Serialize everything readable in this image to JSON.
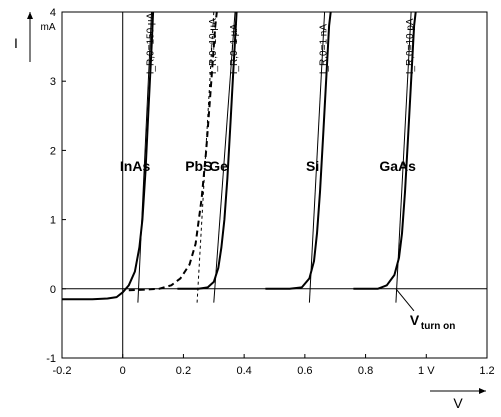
{
  "chart_data": {
    "type": "line",
    "title": "",
    "xlabel": "V",
    "ylabel": "I",
    "y_unit": "mA",
    "x_unit": "V",
    "xlim": [
      -0.2,
      1.2
    ],
    "ylim": [
      -1,
      4
    ],
    "x_ticks": [
      {
        "value": -0.2,
        "label": "-0.2"
      },
      {
        "value": 0,
        "label": "0"
      },
      {
        "value": 0.2,
        "label": "0.2"
      },
      {
        "value": 0.4,
        "label": "0.4"
      },
      {
        "value": 0.6,
        "label": "0.6"
      },
      {
        "value": 0.8,
        "label": "0.8"
      },
      {
        "value": 1.0,
        "label": "1 V"
      },
      {
        "value": 1.2,
        "label": "1.2"
      }
    ],
    "y_ticks": [
      {
        "value": -1,
        "label": "-1"
      },
      {
        "value": 0,
        "label": "0"
      },
      {
        "value": 1,
        "label": "1"
      },
      {
        "value": 2,
        "label": "2"
      },
      {
        "value": 3,
        "label": "3"
      },
      {
        "value": 4,
        "label": "4"
      }
    ],
    "grid": false,
    "series": [
      {
        "name": "InAs",
        "annotation": "I_R,0=150 µA",
        "style": "solid",
        "points": [
          [
            -0.2,
            -0.15
          ],
          [
            -0.1,
            -0.15
          ],
          [
            -0.05,
            -0.14
          ],
          [
            -0.02,
            -0.12
          ],
          [
            0,
            -0.05
          ],
          [
            0.02,
            0.05
          ],
          [
            0.04,
            0.25
          ],
          [
            0.055,
            0.6
          ],
          [
            0.065,
            1.0
          ],
          [
            0.075,
            1.7
          ],
          [
            0.085,
            2.6
          ],
          [
            0.095,
            3.5
          ],
          [
            0.1,
            4.0
          ]
        ],
        "tangent": [
          [
            0.05,
            -0.2
          ],
          [
            0.095,
            4.0
          ]
        ]
      },
      {
        "name": "PbS",
        "annotation": "I_R,0=10 µA",
        "style": "dashed",
        "points": [
          [
            0.02,
            -0.02
          ],
          [
            0.08,
            -0.01
          ],
          [
            0.12,
            0.0
          ],
          [
            0.16,
            0.05
          ],
          [
            0.19,
            0.15
          ],
          [
            0.22,
            0.35
          ],
          [
            0.24,
            0.65
          ],
          [
            0.26,
            1.3
          ],
          [
            0.275,
            2.0
          ],
          [
            0.29,
            2.9
          ],
          [
            0.305,
            3.8
          ],
          [
            0.31,
            4.0
          ]
        ],
        "tangent": [
          [
            0.245,
            -0.2
          ],
          [
            0.3,
            4.0
          ]
        ]
      },
      {
        "name": "Ge",
        "annotation": "I_R,0=1 µA",
        "style": "solid",
        "points": [
          [
            0.18,
            0.0
          ],
          [
            0.25,
            0.0
          ],
          [
            0.28,
            0.02
          ],
          [
            0.3,
            0.1
          ],
          [
            0.315,
            0.3
          ],
          [
            0.325,
            0.6
          ],
          [
            0.335,
            1.0
          ],
          [
            0.345,
            1.6
          ],
          [
            0.355,
            2.4
          ],
          [
            0.365,
            3.2
          ],
          [
            0.375,
            4.0
          ]
        ],
        "tangent": [
          [
            0.3,
            -0.2
          ],
          [
            0.37,
            4.0
          ]
        ]
      },
      {
        "name": "Si",
        "annotation": "I_R,0=1 nA",
        "style": "solid",
        "points": [
          [
            0.47,
            0.0
          ],
          [
            0.55,
            0.0
          ],
          [
            0.59,
            0.02
          ],
          [
            0.615,
            0.15
          ],
          [
            0.63,
            0.4
          ],
          [
            0.64,
            0.8
          ],
          [
            0.65,
            1.4
          ],
          [
            0.66,
            2.2
          ],
          [
            0.67,
            3.0
          ],
          [
            0.68,
            3.8
          ],
          [
            0.685,
            4.0
          ]
        ],
        "tangent": [
          [
            0.615,
            -0.2
          ],
          [
            0.665,
            4.0
          ]
        ]
      },
      {
        "name": "GaAs",
        "annotation": "I_R,0=10 pA",
        "style": "solid",
        "points": [
          [
            0.76,
            0.0
          ],
          [
            0.84,
            0.0
          ],
          [
            0.87,
            0.05
          ],
          [
            0.895,
            0.2
          ],
          [
            0.91,
            0.45
          ],
          [
            0.92,
            0.8
          ],
          [
            0.93,
            1.4
          ],
          [
            0.94,
            2.2
          ],
          [
            0.95,
            3.0
          ],
          [
            0.96,
            3.8
          ],
          [
            0.965,
            4.0
          ]
        ],
        "tangent": [
          [
            0.9,
            -0.2
          ],
          [
            0.95,
            4.0
          ]
        ]
      }
    ],
    "annotations": [
      {
        "text": "V",
        "sub": "turn on",
        "x": 0.9,
        "y": 0
      }
    ]
  }
}
